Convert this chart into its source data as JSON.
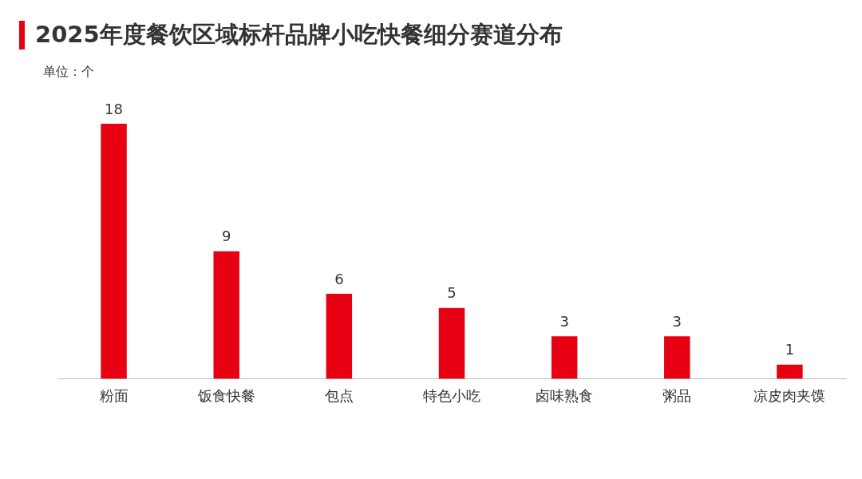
{
  "chart_data": {
    "type": "bar",
    "title": "2025年度餐饮区域标杆品牌小吃快餐细分赛道分布",
    "ylabel": "单位：个",
    "categories": [
      "粉面",
      "饭食快餐",
      "包点",
      "特色小吃",
      "卤味熟食",
      "粥品",
      "凉皮肉夹馍"
    ],
    "values": [
      18,
      9,
      6,
      5,
      3,
      3,
      1
    ],
    "color": "#e60012",
    "data_labels": true,
    "grid": false,
    "legend": false
  }
}
